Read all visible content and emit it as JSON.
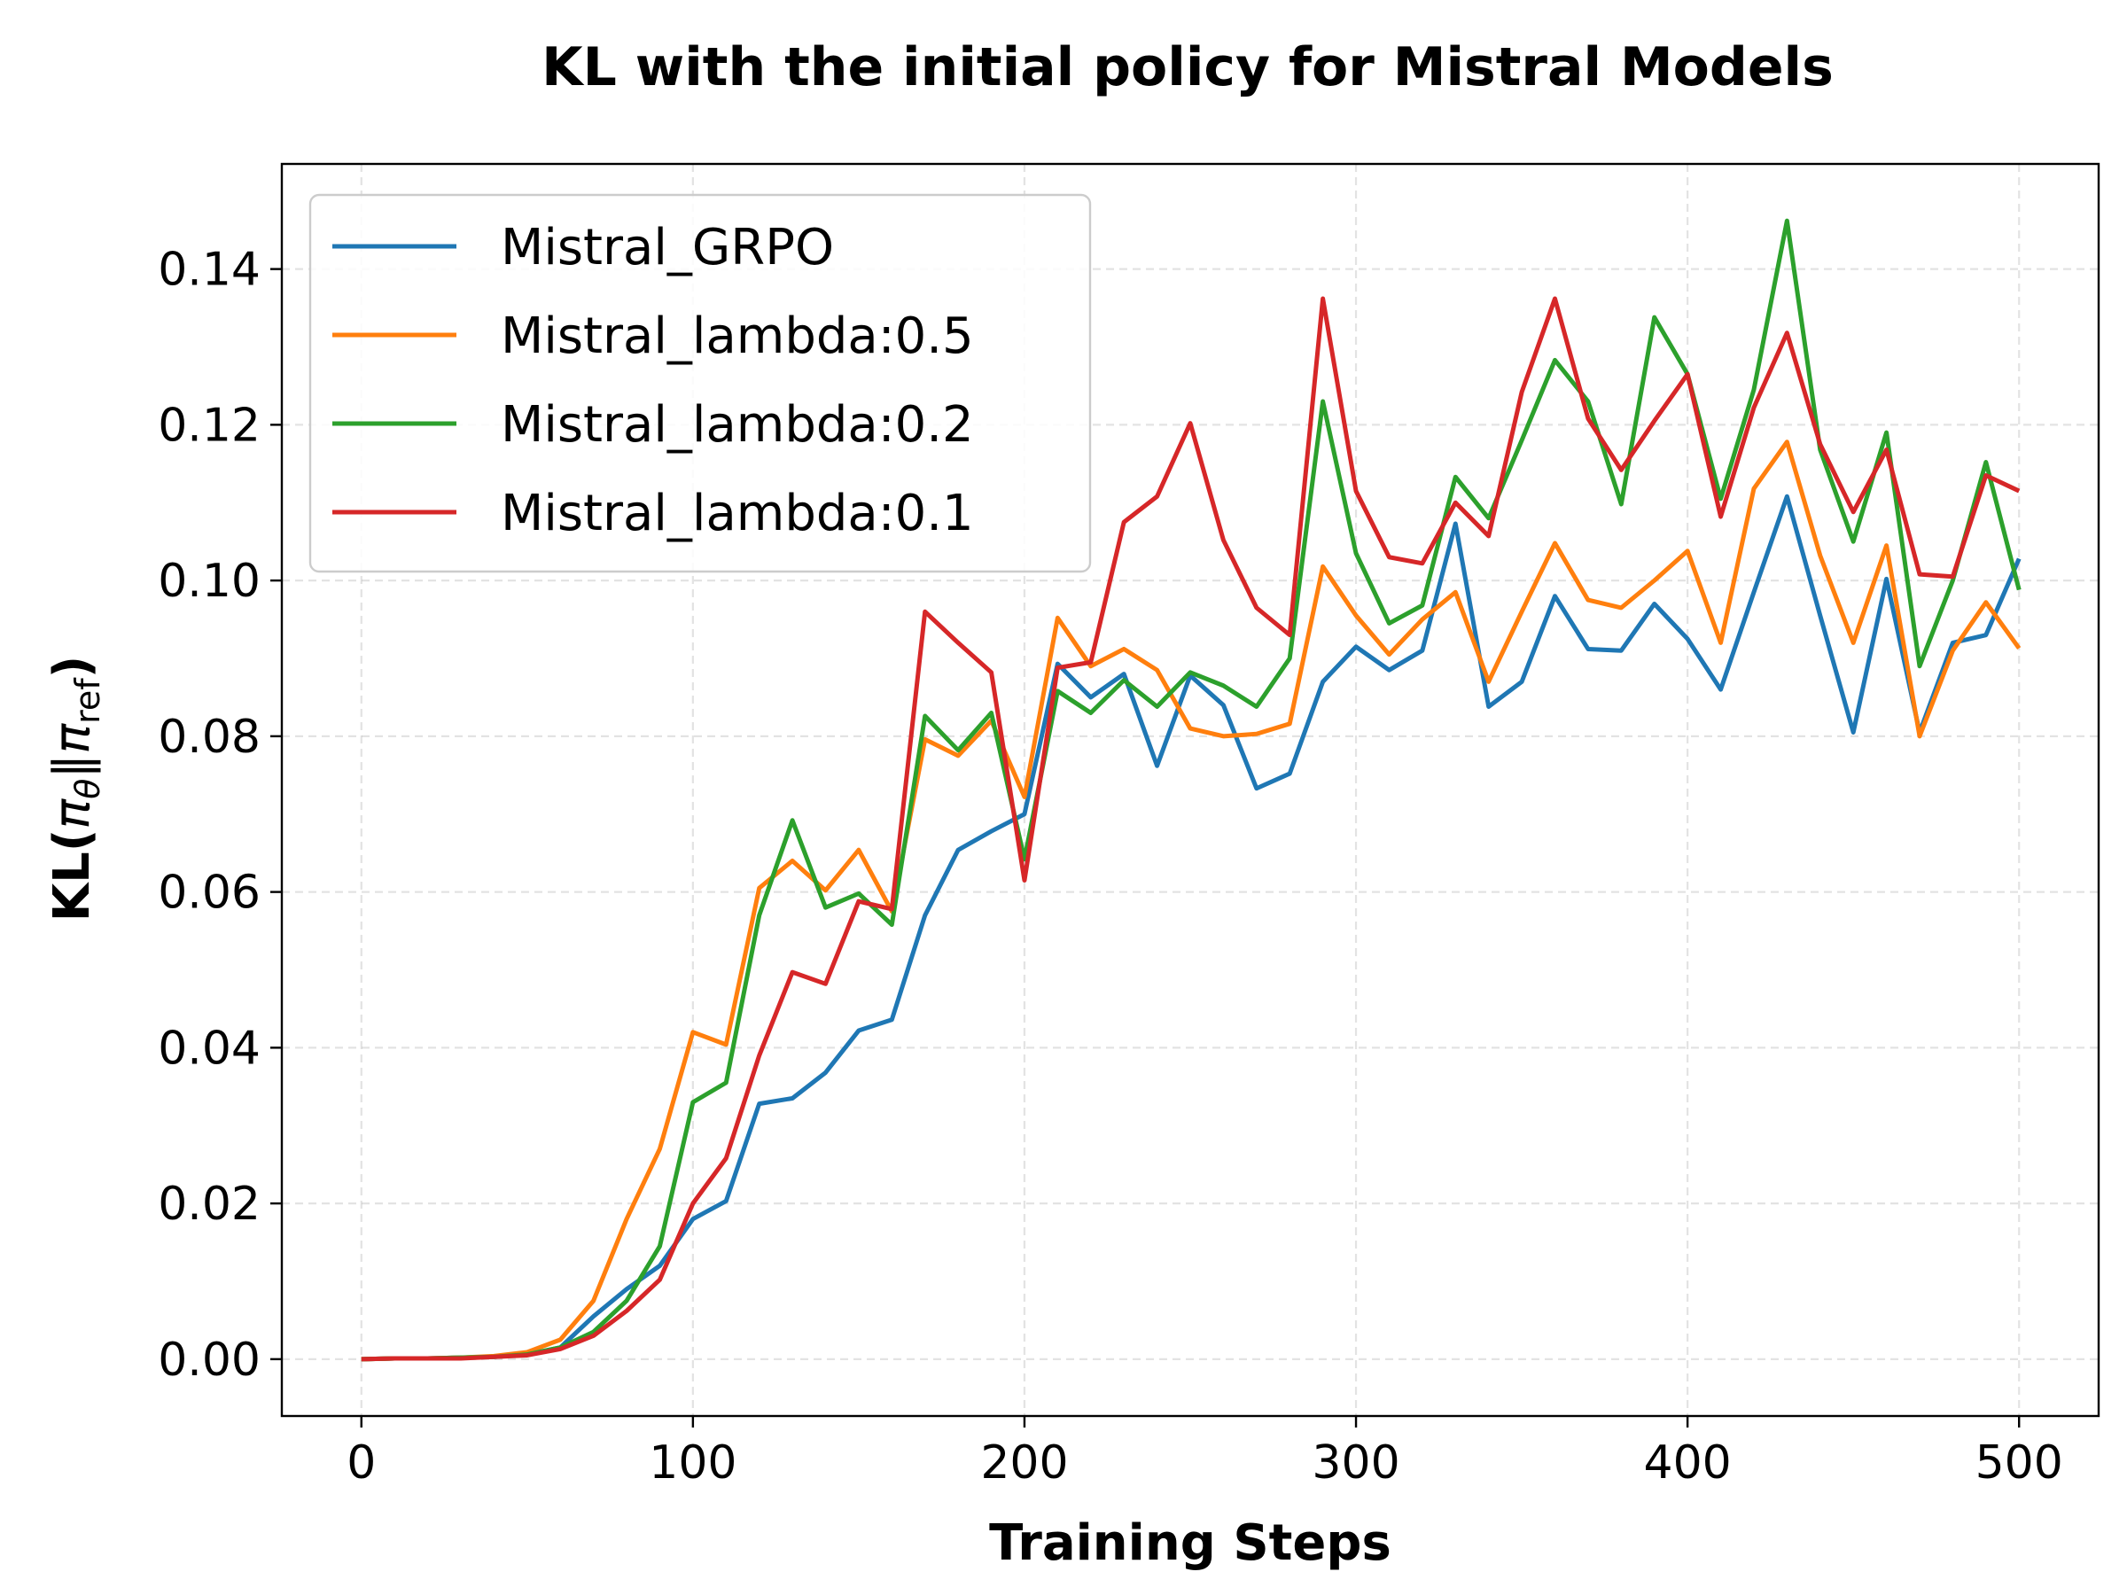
{
  "chart_data": {
    "type": "line",
    "title": "KL with the initial policy for Mistral Models",
    "xlabel": "Training Steps",
    "ylabel": "KL(πθ‖πref)",
    "ylabel_parts": {
      "prefix": "KL(",
      "pi1": "π",
      "theta": "θ",
      "sep": "‖",
      "pi2": "π",
      "ref": "ref",
      "suffix": ")"
    },
    "xlim": [
      -24,
      524
    ],
    "ylim": [
      -0.0073,
      0.1535
    ],
    "xticks": [
      0,
      100,
      200,
      300,
      400,
      500
    ],
    "yticks": [
      0.0,
      0.02,
      0.04,
      0.06,
      0.08,
      0.1,
      0.12,
      0.14
    ],
    "ytick_labels": [
      "0.00",
      "0.02",
      "0.04",
      "0.06",
      "0.08",
      "0.10",
      "0.12",
      "0.14"
    ],
    "xtick_labels": [
      "0",
      "100",
      "200",
      "300",
      "400",
      "500"
    ],
    "grid": true,
    "legend_position": "upper-left",
    "x": [
      0,
      10,
      20,
      30,
      40,
      50,
      60,
      70,
      80,
      90,
      100,
      110,
      120,
      130,
      140,
      150,
      160,
      170,
      180,
      190,
      200,
      210,
      220,
      230,
      240,
      250,
      260,
      270,
      280,
      290,
      300,
      310,
      320,
      330,
      340,
      350,
      360,
      370,
      380,
      390,
      400,
      410,
      420,
      430,
      440,
      450,
      460,
      470,
      480,
      490,
      500
    ],
    "series": [
      {
        "name": "Mistral_GRPO",
        "color": "#1f77b4",
        "values": [
          0.0,
          0.0001,
          0.0001,
          0.0002,
          0.0003,
          0.0006,
          0.0015,
          0.0055,
          0.009,
          0.012,
          0.018,
          0.0203,
          0.0328,
          0.0335,
          0.0368,
          0.0422,
          0.0436,
          0.057,
          0.0654,
          0.0678,
          0.07,
          0.0893,
          0.085,
          0.088,
          0.0762,
          0.0878,
          0.084,
          0.0733,
          0.0752,
          0.087,
          0.0915,
          0.0885,
          0.091,
          0.1073,
          0.0838,
          0.087,
          0.098,
          0.0912,
          0.091,
          0.097,
          0.0925,
          0.086,
          0.0985,
          0.1108,
          0.0955,
          0.0805,
          0.1002,
          0.0805,
          0.092,
          0.093,
          0.1028
        ]
      },
      {
        "name": "Mistral_lambda:0.5",
        "color": "#ff7f0e",
        "values": [
          0.0,
          0.0001,
          0.0001,
          0.0002,
          0.0004,
          0.0009,
          0.0025,
          0.0075,
          0.018,
          0.027,
          0.042,
          0.0404,
          0.0605,
          0.064,
          0.0602,
          0.0654,
          0.0575,
          0.0796,
          0.0775,
          0.082,
          0.0722,
          0.0952,
          0.089,
          0.0912,
          0.0885,
          0.081,
          0.08,
          0.0803,
          0.0816,
          0.1018,
          0.0955,
          0.0905,
          0.095,
          0.0985,
          0.087,
          0.096,
          0.1048,
          0.0975,
          0.0965,
          0.1,
          0.1038,
          0.092,
          0.1118,
          0.1178,
          0.1032,
          0.092,
          0.1045,
          0.08,
          0.091,
          0.0972,
          0.0913
        ]
      },
      {
        "name": "Mistral_lambda:0.2",
        "color": "#2ca02c",
        "values": [
          0.0,
          0.0001,
          0.0001,
          0.0002,
          0.0003,
          0.0006,
          0.0015,
          0.0035,
          0.0075,
          0.0145,
          0.033,
          0.0355,
          0.057,
          0.0692,
          0.058,
          0.0598,
          0.0558,
          0.0826,
          0.0782,
          0.083,
          0.0642,
          0.0858,
          0.083,
          0.0872,
          0.0838,
          0.0882,
          0.0865,
          0.0838,
          0.09,
          0.123,
          0.1035,
          0.0945,
          0.0968,
          0.1133,
          0.108,
          0.118,
          0.1283,
          0.123,
          0.1098,
          0.1338,
          0.1265,
          0.1105,
          0.1245,
          0.1462,
          0.1168,
          0.105,
          0.119,
          0.089,
          0.1,
          0.1152,
          0.0988
        ]
      },
      {
        "name": "Mistral_lambda:0.1",
        "color": "#d62728",
        "values": [
          0.0,
          0.0001,
          0.0001,
          0.0001,
          0.0003,
          0.0005,
          0.0013,
          0.003,
          0.0062,
          0.0102,
          0.02,
          0.0258,
          0.039,
          0.0497,
          0.0482,
          0.0588,
          0.0578,
          0.096,
          0.092,
          0.0882,
          0.0615,
          0.0888,
          0.0895,
          0.1075,
          0.1108,
          0.1202,
          0.1052,
          0.0965,
          0.093,
          0.1362,
          0.1115,
          0.103,
          0.1022,
          0.11,
          0.1057,
          0.1242,
          0.1362,
          0.1208,
          0.1142,
          0.1205,
          0.1265,
          0.1082,
          0.1222,
          0.1318,
          0.1175,
          0.1088,
          0.1168,
          0.1008,
          0.1005,
          0.1135,
          0.1115
        ]
      }
    ]
  }
}
